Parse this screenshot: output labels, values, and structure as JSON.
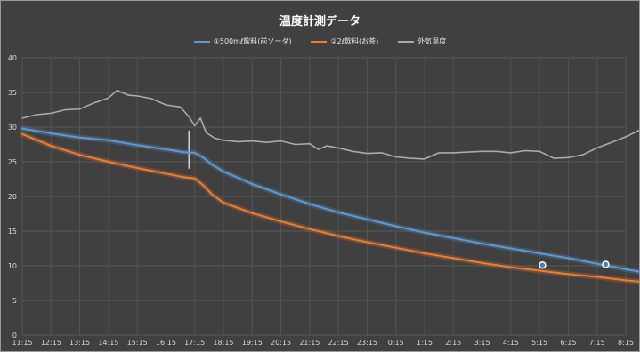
{
  "chart_data": {
    "type": "line",
    "title": "温度計測データ",
    "xlabel": "",
    "ylabel": "",
    "ylim": [
      0,
      40
    ],
    "y_ticks": [
      0,
      5,
      10,
      15,
      20,
      25,
      30,
      35,
      40
    ],
    "x_tick_labels": [
      "11:15",
      "12:15",
      "13:15",
      "14:15",
      "15:15",
      "16:15",
      "17:15",
      "18:15",
      "19:15",
      "20:15",
      "21:15",
      "22:15",
      "23:15",
      "0:15",
      "1:15",
      "2:15",
      "3:15",
      "4:15",
      "5:15",
      "6:15",
      "7:15",
      "8:15"
    ],
    "grid": true,
    "legend_position": "top-center",
    "background": "#404040",
    "series": [
      {
        "name": "①500mℓ飲料(前ソーダ)",
        "color": "#5b9bd5",
        "x": [
          0,
          1,
          2,
          3,
          4,
          5,
          5.6,
          6.0,
          6.3,
          6.6,
          7,
          8,
          9,
          10,
          11,
          12,
          13,
          14,
          15,
          16,
          17,
          18,
          19,
          20,
          21,
          21.8
        ],
        "values": [
          29.8,
          29.1,
          28.5,
          28.1,
          27.4,
          26.8,
          26.4,
          26.3,
          25.6,
          24.6,
          23.6,
          21.8,
          20.3,
          18.9,
          17.7,
          16.7,
          15.7,
          14.8,
          14.0,
          13.2,
          12.5,
          11.8,
          11.1,
          10.3,
          9.5,
          8.9
        ],
        "markers": [
          {
            "x": 18.1,
            "y": 10.1
          },
          {
            "x": 20.3,
            "y": 10.2
          }
        ]
      },
      {
        "name": "②2ℓ飲料(お茶)",
        "color": "#ed7d31",
        "x": [
          0,
          1,
          2,
          3,
          4,
          5,
          5.6,
          6.0,
          6.3,
          6.6,
          7,
          8,
          9,
          10,
          11,
          12,
          13,
          14,
          15,
          16,
          17,
          18,
          19,
          20,
          21,
          21.8
        ],
        "values": [
          29.0,
          27.3,
          26.0,
          25.0,
          24.1,
          23.3,
          22.8,
          22.6,
          21.6,
          20.3,
          19.1,
          17.6,
          16.4,
          15.3,
          14.3,
          13.4,
          12.6,
          11.8,
          11.1,
          10.4,
          9.8,
          9.3,
          8.8,
          8.4,
          7.9,
          7.6
        ]
      },
      {
        "name": "外気温度",
        "color": "#aaaaaa",
        "x": [
          0,
          0.5,
          1,
          1.5,
          2,
          2.5,
          3,
          3.3,
          3.7,
          4,
          4.5,
          5,
          5.5,
          5.8,
          6.0,
          6.2,
          6.4,
          6.7,
          7,
          7.5,
          8,
          8.5,
          9,
          9.5,
          10,
          10.3,
          10.6,
          11,
          11.5,
          12,
          12.5,
          13,
          13.5,
          14,
          14.5,
          15,
          15.5,
          16,
          16.5,
          17,
          17.5,
          18,
          18.5,
          19,
          19.5,
          20,
          20.5,
          21,
          21.5,
          21.8
        ],
        "values": [
          31.3,
          31.8,
          32.0,
          32.5,
          32.6,
          33.5,
          34.2,
          35.3,
          34.6,
          34.5,
          34.1,
          33.2,
          32.9,
          31.5,
          30.2,
          31.3,
          29.2,
          28.4,
          28.1,
          27.9,
          28.0,
          27.8,
          28.0,
          27.5,
          27.6,
          26.8,
          27.3,
          27.0,
          26.5,
          26.2,
          26.3,
          25.7,
          25.5,
          25.4,
          26.3,
          26.3,
          26.4,
          26.5,
          26.5,
          26.3,
          26.6,
          26.5,
          25.5,
          25.6,
          26.0,
          27.0,
          27.8,
          28.6,
          29.6,
          33.3
        ],
        "spikes": [
          {
            "x": 5.8,
            "low": 24.0,
            "high": 29.5
          }
        ]
      }
    ]
  }
}
